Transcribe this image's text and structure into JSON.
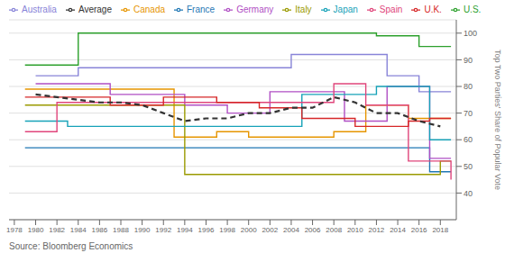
{
  "chart_data": {
    "type": "line",
    "y_label": "Top Two Parties' Share of Popular Vote",
    "annotations": [
      "Source: Bloomberg Economics"
    ],
    "xlim": [
      1977.5,
      2019.5
    ],
    "xticks": [
      1978,
      1980,
      1982,
      1984,
      1986,
      1988,
      1990,
      1992,
      1994,
      1996,
      1998,
      2000,
      2002,
      2004,
      2006,
      2008,
      2010,
      2012,
      2014,
      2016,
      2018
    ],
    "ylim": [
      30,
      105
    ],
    "yticks": [
      40,
      50,
      60,
      70,
      80,
      90,
      100
    ],
    "grid": true,
    "legend": "top",
    "series": [
      {
        "name": "Australia",
        "type": "step",
        "x": [
          1980,
          1983,
          1984,
          1987,
          1990,
          1993,
          1996,
          1998,
          2001,
          2004,
          2007,
          2010,
          2013,
          2016,
          2019
        ],
        "values": [
          84,
          84,
          87,
          87,
          87,
          87,
          87,
          87,
          87,
          92,
          92,
          92,
          84,
          78,
          78
        ]
      },
      {
        "name": "Canada",
        "type": "step",
        "x": [
          1979,
          1980,
          1984,
          1988,
          1993,
          1997,
          2000,
          2004,
          2006,
          2008,
          2011,
          2015,
          2019
        ],
        "values": [
          79,
          79,
          79,
          79,
          61,
          63,
          61,
          61,
          61,
          63,
          73,
          68,
          68
        ]
      },
      {
        "name": "France",
        "type": "step",
        "x": [
          1979,
          1981,
          1986,
          1988,
          1993,
          1997,
          2002,
          2007,
          2012,
          2017,
          2019
        ],
        "values": [
          57,
          57,
          57,
          57,
          57,
          57,
          57,
          57,
          57,
          48,
          48
        ]
      },
      {
        "name": "Germany",
        "type": "step",
        "x": [
          1980,
          1983,
          1987,
          1990,
          1994,
          1998,
          2002,
          2005,
          2009,
          2013,
          2017,
          2019
        ],
        "values": [
          81,
          81,
          77,
          77,
          73,
          70,
          78,
          78,
          67,
          80,
          53,
          53
        ]
      },
      {
        "name": "Italy",
        "type": "step",
        "x": [
          1979,
          1983,
          1987,
          1992,
          1994,
          1996,
          2001,
          2006,
          2008,
          2013,
          2018,
          2019
        ],
        "values": [
          73,
          73,
          73,
          73,
          47,
          47,
          47,
          47,
          47,
          47,
          52,
          52
        ]
      },
      {
        "name": "Japan",
        "type": "step",
        "x": [
          1979,
          1980,
          1983,
          1986,
          1990,
          1993,
          1996,
          2000,
          2003,
          2005,
          2009,
          2012,
          2014,
          2017,
          2019
        ],
        "values": [
          67,
          67,
          65,
          65,
          65,
          65,
          65,
          65,
          65,
          77,
          77,
          80,
          80,
          60,
          60
        ]
      },
      {
        "name": "Spain",
        "type": "step",
        "x": [
          1979,
          1982,
          1986,
          1989,
          1993,
          1996,
          2000,
          2004,
          2008,
          2011,
          2015,
          2016,
          2019
        ],
        "values": [
          63,
          74,
          74,
          74,
          74,
          74,
          74,
          74,
          81,
          73,
          52,
          52,
          45
        ]
      },
      {
        "name": "U.K.",
        "type": "step",
        "x": [
          1979,
          1983,
          1987,
          1992,
          1997,
          2001,
          2005,
          2010,
          2015,
          2017,
          2019
        ],
        "values": [
          76,
          76,
          73,
          76,
          74,
          72,
          68,
          65,
          67,
          68,
          68
        ]
      },
      {
        "name": "U.S.",
        "type": "step",
        "x": [
          1979,
          1980,
          1984,
          1988,
          1992,
          1996,
          2000,
          2004,
          2008,
          2012,
          2016,
          2019
        ],
        "values": [
          88,
          88,
          100,
          100,
          100,
          100,
          100,
          100,
          100,
          99,
          95,
          95
        ]
      },
      {
        "name": "Average",
        "type": "line",
        "line_style": "dashed",
        "x": [
          1980,
          1982,
          1984,
          1986,
          1988,
          1990,
          1992,
          1994,
          1996,
          1998,
          2000,
          2002,
          2004,
          2006,
          2008,
          2010,
          2012,
          2014,
          2016,
          2018
        ],
        "values": [
          77,
          76,
          75,
          74,
          74,
          73,
          70,
          67,
          68,
          68,
          70,
          70,
          72,
          72,
          76,
          74,
          70,
          70,
          67,
          65
        ]
      }
    ]
  }
}
